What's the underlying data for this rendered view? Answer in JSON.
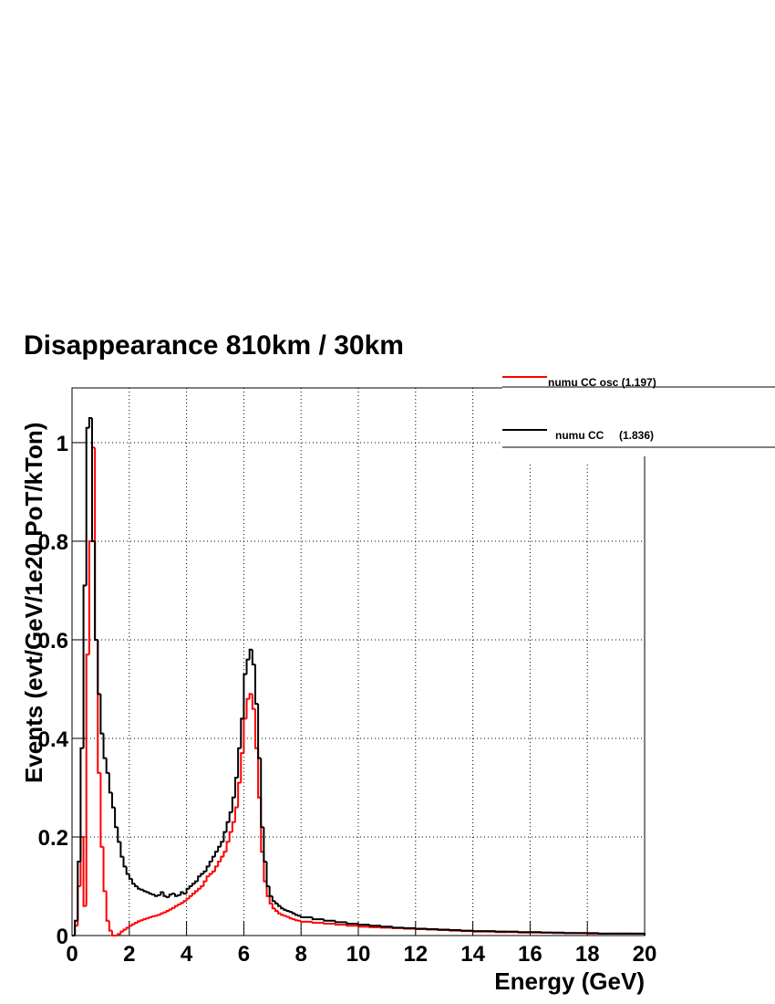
{
  "chart_data": {
    "type": "histogram",
    "title": "Disappearance 810km / 30km",
    "x_label": "Energy (GeV)",
    "y_label": "Events (evt/GeV/1e20 PoT/kTon)",
    "bins": [
      0,
      0.1,
      0.2,
      0.3,
      0.4,
      0.5,
      0.6,
      0.7,
      0.8,
      0.9,
      1.0,
      1.1,
      1.2,
      1.3,
      1.4,
      1.5,
      1.6,
      1.7,
      1.8,
      1.9,
      2.0,
      2.1,
      2.2,
      2.3,
      2.4,
      2.5,
      2.6,
      2.7,
      2.8,
      2.9,
      3.0,
      3.1,
      3.2,
      3.3,
      3.4,
      3.5,
      3.6,
      3.7,
      3.8,
      3.9,
      4.0,
      4.1,
      4.2,
      4.3,
      4.4,
      4.5,
      4.6,
      4.7,
      4.8,
      4.9,
      5.0,
      5.1,
      5.2,
      5.3,
      5.4,
      5.5,
      5.6,
      5.7,
      5.8,
      5.9,
      6.0,
      6.1,
      6.2,
      6.3,
      6.4,
      6.5,
      6.6,
      6.7,
      6.8,
      6.9,
      7.0,
      7.1,
      7.2,
      7.3,
      7.4,
      7.5,
      7.6,
      7.7,
      7.8,
      7.9,
      8.0,
      8.4,
      8.8,
      9.2,
      9.6,
      10.0,
      10.4,
      10.8,
      11.2,
      11.6,
      12.0,
      12.4,
      12.8,
      13.2,
      13.6,
      14.0,
      14.4,
      14.8,
      15.2,
      15.6,
      16.0,
      16.4,
      16.8,
      17.2,
      17.6,
      18.0,
      18.4,
      18.8,
      19.2,
      19.6,
      20.0
    ],
    "series": [
      {
        "name": "numu CC osc (1.197)",
        "color": "#ff0000",
        "values": [
          0,
          0.02,
          0.1,
          0.2,
          0.06,
          0.57,
          0.8,
          0.99,
          0.6,
          0.33,
          0.18,
          0.09,
          0.03,
          0.01,
          0,
          0,
          0.003,
          0.008,
          0.012,
          0.016,
          0.02,
          0.023,
          0.026,
          0.029,
          0.031,
          0.033,
          0.035,
          0.037,
          0.039,
          0.04,
          0.042,
          0.045,
          0.047,
          0.05,
          0.053,
          0.056,
          0.06,
          0.063,
          0.066,
          0.07,
          0.075,
          0.08,
          0.085,
          0.09,
          0.095,
          0.1,
          0.11,
          0.12,
          0.125,
          0.13,
          0.14,
          0.15,
          0.16,
          0.17,
          0.19,
          0.21,
          0.23,
          0.26,
          0.31,
          0.37,
          0.44,
          0.48,
          0.49,
          0.46,
          0.38,
          0.28,
          0.17,
          0.11,
          0.08,
          0.065,
          0.055,
          0.05,
          0.045,
          0.042,
          0.04,
          0.038,
          0.035,
          0.033,
          0.031,
          0.03,
          0.028,
          0.026,
          0.024,
          0.022,
          0.02,
          0.018,
          0.017,
          0.016,
          0.015,
          0.014,
          0.013,
          0.012,
          0.011,
          0.01,
          0.009,
          0.008,
          0.008,
          0.007,
          0.007,
          0.006,
          0.006,
          0.006,
          0.005,
          0.005,
          0.005,
          0.004,
          0.004,
          0.004,
          0.004,
          0.004
        ]
      },
      {
        "name": "numu CC     (1.836)",
        "color": "#000000",
        "values": [
          0,
          0.03,
          0.15,
          0.38,
          0.71,
          1.03,
          1.05,
          0.8,
          0.6,
          0.49,
          0.41,
          0.36,
          0.33,
          0.29,
          0.26,
          0.22,
          0.19,
          0.16,
          0.14,
          0.125,
          0.115,
          0.105,
          0.1,
          0.095,
          0.093,
          0.09,
          0.088,
          0.085,
          0.083,
          0.08,
          0.082,
          0.088,
          0.08,
          0.078,
          0.083,
          0.085,
          0.08,
          0.082,
          0.088,
          0.085,
          0.095,
          0.1,
          0.105,
          0.11,
          0.12,
          0.125,
          0.13,
          0.14,
          0.15,
          0.16,
          0.17,
          0.18,
          0.19,
          0.21,
          0.23,
          0.25,
          0.28,
          0.32,
          0.38,
          0.44,
          0.53,
          0.56,
          0.58,
          0.55,
          0.47,
          0.36,
          0.22,
          0.15,
          0.1,
          0.08,
          0.07,
          0.065,
          0.06,
          0.055,
          0.052,
          0.05,
          0.048,
          0.045,
          0.042,
          0.04,
          0.037,
          0.033,
          0.03,
          0.027,
          0.024,
          0.022,
          0.02,
          0.018,
          0.016,
          0.015,
          0.014,
          0.013,
          0.012,
          0.011,
          0.01,
          0.009,
          0.009,
          0.008,
          0.008,
          0.007,
          0.007,
          0.006,
          0.006,
          0.005,
          0.005,
          0.005,
          0.004,
          0.004,
          0.004,
          0.004
        ]
      }
    ],
    "xlim": [
      0,
      20
    ],
    "xticks": [
      0,
      2,
      4,
      6,
      8,
      10,
      12,
      14,
      16,
      18,
      20
    ],
    "ylim": [
      0,
      1.111
    ],
    "yticks": [
      0,
      0.2,
      0.4,
      0.6,
      0.8,
      1
    ],
    "grid": true,
    "legend": "top-right"
  }
}
